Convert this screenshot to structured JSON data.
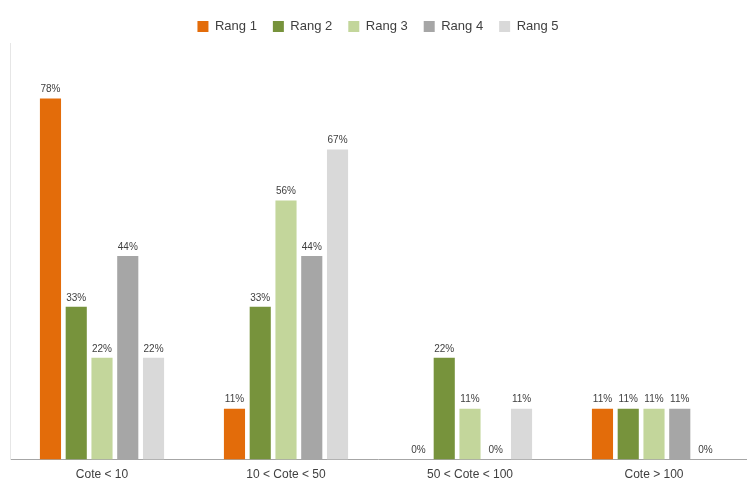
{
  "chart_data": {
    "type": "bar",
    "categories": [
      "Cote < 10",
      "10 < Cote < 50",
      "50 < Cote < 100",
      "Cote > 100"
    ],
    "series": [
      {
        "name": "Rang 1",
        "color": "#e36c0a",
        "values": [
          78,
          11,
          0,
          11
        ],
        "value_labels": [
          "78%",
          "11%",
          "0%",
          "11%"
        ]
      },
      {
        "name": "Rang 2",
        "color": "#77933c",
        "values": [
          33,
          33,
          22,
          11
        ],
        "value_labels": [
          "33%",
          "33%",
          "22%",
          "11%"
        ]
      },
      {
        "name": "Rang 3",
        "color": "#c3d69b",
        "values": [
          22,
          56,
          11,
          11
        ],
        "value_labels": [
          "22%",
          "56%",
          "11%",
          "11%"
        ]
      },
      {
        "name": "Rang 4",
        "color": "#a6a6a6",
        "values": [
          44,
          44,
          0,
          11
        ],
        "value_labels": [
          "44%",
          "44%",
          "0%",
          "11%"
        ]
      },
      {
        "name": "Rang 5",
        "color": "#d9d9d9",
        "values": [
          22,
          67,
          11,
          0
        ],
        "value_labels": [
          "22%",
          "67%",
          "11%",
          "0%"
        ]
      }
    ],
    "ylim": [
      0,
      90
    ],
    "grid": false,
    "legend": "top",
    "data_labels": true,
    "tick_labels": "x"
  }
}
